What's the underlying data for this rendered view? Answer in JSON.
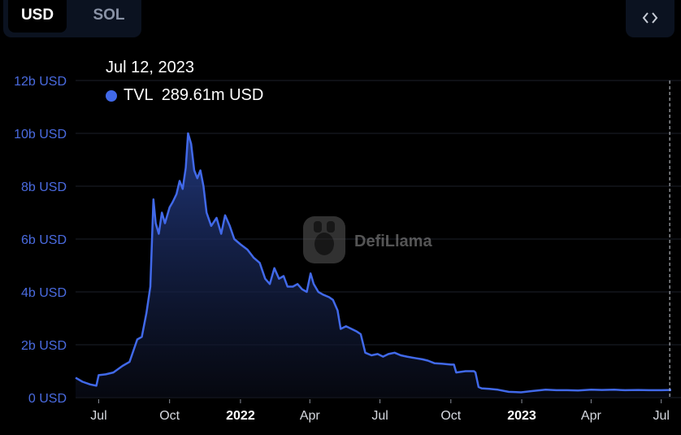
{
  "toggle": {
    "usd_label": "USD",
    "sol_label": "SOL"
  },
  "embed": {
    "icon": "code-brackets-icon"
  },
  "tooltip": {
    "date": "Jul 12, 2023",
    "series": "TVL",
    "value": "289.61m USD"
  },
  "watermark": {
    "brand": "DefiLlama"
  },
  "colors": {
    "line": "#4169e9",
    "axis_label": "#4a6be0",
    "background": "#000000"
  },
  "chart_data": {
    "type": "area",
    "series_name": "TVL",
    "ylim": [
      0,
      12
    ],
    "y_unit": "b USD",
    "y_ticks": [
      "0 USD",
      "2b USD",
      "4b USD",
      "6b USD",
      "8b USD",
      "10b USD",
      "12b USD"
    ],
    "y_tick_values": [
      0,
      2,
      4,
      6,
      8,
      10,
      12
    ],
    "xlim": [
      "2021-06-01",
      "2023-07-14"
    ],
    "x_ticks": [
      {
        "label": "Jul",
        "date": "2021-07-01",
        "bold": false
      },
      {
        "label": "Oct",
        "date": "2021-10-01",
        "bold": false
      },
      {
        "label": "2022",
        "date": "2022-01-01",
        "bold": true
      },
      {
        "label": "Apr",
        "date": "2022-04-01",
        "bold": false
      },
      {
        "label": "Jul",
        "date": "2022-07-01",
        "bold": false
      },
      {
        "label": "Oct",
        "date": "2022-10-01",
        "bold": false
      },
      {
        "label": "2023",
        "date": "2023-01-01",
        "bold": true
      },
      {
        "label": "Apr",
        "date": "2023-04-01",
        "bold": false
      },
      {
        "label": "Jul",
        "date": "2023-07-01",
        "bold": false
      }
    ],
    "grid": true,
    "legend": "none",
    "hover_date": "2023-07-12",
    "points": [
      [
        "2021-06-01",
        0.75
      ],
      [
        "2021-06-10",
        0.6
      ],
      [
        "2021-06-20",
        0.5
      ],
      [
        "2021-06-28",
        0.45
      ],
      [
        "2021-07-01",
        0.85
      ],
      [
        "2021-07-10",
        0.88
      ],
      [
        "2021-07-20",
        0.95
      ],
      [
        "2021-08-01",
        1.2
      ],
      [
        "2021-08-10",
        1.35
      ],
      [
        "2021-08-20",
        2.2
      ],
      [
        "2021-08-26",
        2.3
      ],
      [
        "2021-09-01",
        3.2
      ],
      [
        "2021-09-06",
        4.2
      ],
      [
        "2021-09-10",
        7.5
      ],
      [
        "2021-09-13",
        6.6
      ],
      [
        "2021-09-17",
        6.2
      ],
      [
        "2021-09-21",
        7.0
      ],
      [
        "2021-09-25",
        6.6
      ],
      [
        "2021-10-01",
        7.2
      ],
      [
        "2021-10-05",
        7.4
      ],
      [
        "2021-10-10",
        7.7
      ],
      [
        "2021-10-14",
        8.2
      ],
      [
        "2021-10-18",
        7.9
      ],
      [
        "2021-10-22",
        8.7
      ],
      [
        "2021-10-25",
        10.0
      ],
      [
        "2021-10-29",
        9.6
      ],
      [
        "2021-11-02",
        8.6
      ],
      [
        "2021-11-06",
        8.3
      ],
      [
        "2021-11-10",
        8.6
      ],
      [
        "2021-11-14",
        8.0
      ],
      [
        "2021-11-18",
        7.0
      ],
      [
        "2021-11-24",
        6.5
      ],
      [
        "2021-12-01",
        6.8
      ],
      [
        "2021-12-07",
        6.2
      ],
      [
        "2021-12-12",
        6.9
      ],
      [
        "2021-12-18",
        6.5
      ],
      [
        "2021-12-24",
        6.0
      ],
      [
        "2022-01-01",
        5.8
      ],
      [
        "2022-01-10",
        5.6
      ],
      [
        "2022-01-18",
        5.3
      ],
      [
        "2022-01-26",
        5.1
      ],
      [
        "2022-02-02",
        4.5
      ],
      [
        "2022-02-08",
        4.3
      ],
      [
        "2022-02-14",
        4.9
      ],
      [
        "2022-02-20",
        4.5
      ],
      [
        "2022-02-26",
        4.6
      ],
      [
        "2022-03-03",
        4.2
      ],
      [
        "2022-03-10",
        4.2
      ],
      [
        "2022-03-16",
        4.3
      ],
      [
        "2022-03-22",
        4.1
      ],
      [
        "2022-03-28",
        4.0
      ],
      [
        "2022-04-02",
        4.7
      ],
      [
        "2022-04-06",
        4.3
      ],
      [
        "2022-04-12",
        4.0
      ],
      [
        "2022-04-18",
        3.9
      ],
      [
        "2022-04-26",
        3.8
      ],
      [
        "2022-05-01",
        3.7
      ],
      [
        "2022-05-07",
        3.3
      ],
      [
        "2022-05-11",
        2.6
      ],
      [
        "2022-05-18",
        2.7
      ],
      [
        "2022-05-25",
        2.6
      ],
      [
        "2022-06-01",
        2.5
      ],
      [
        "2022-06-06",
        2.4
      ],
      [
        "2022-06-12",
        1.7
      ],
      [
        "2022-06-20",
        1.6
      ],
      [
        "2022-06-28",
        1.65
      ],
      [
        "2022-07-05",
        1.55
      ],
      [
        "2022-07-12",
        1.65
      ],
      [
        "2022-07-20",
        1.7
      ],
      [
        "2022-07-28",
        1.6
      ],
      [
        "2022-08-05",
        1.55
      ],
      [
        "2022-08-15",
        1.5
      ],
      [
        "2022-08-25",
        1.45
      ],
      [
        "2022-09-01",
        1.4
      ],
      [
        "2022-09-10",
        1.3
      ],
      [
        "2022-09-20",
        1.28
      ],
      [
        "2022-10-01",
        1.25
      ],
      [
        "2022-10-05",
        1.25
      ],
      [
        "2022-10-08",
        0.95
      ],
      [
        "2022-10-20",
        1.0
      ],
      [
        "2022-10-31",
        1.0
      ],
      [
        "2022-11-02",
        0.95
      ],
      [
        "2022-11-06",
        0.4
      ],
      [
        "2022-11-10",
        0.35
      ],
      [
        "2022-11-20",
        0.33
      ],
      [
        "2022-12-01",
        0.3
      ],
      [
        "2022-12-15",
        0.22
      ],
      [
        "2022-12-31",
        0.2
      ],
      [
        "2023-01-15",
        0.25
      ],
      [
        "2023-02-01",
        0.3
      ],
      [
        "2023-02-15",
        0.28
      ],
      [
        "2023-03-01",
        0.28
      ],
      [
        "2023-03-15",
        0.27
      ],
      [
        "2023-04-01",
        0.3
      ],
      [
        "2023-04-15",
        0.29
      ],
      [
        "2023-05-01",
        0.3
      ],
      [
        "2023-05-15",
        0.28
      ],
      [
        "2023-06-01",
        0.29
      ],
      [
        "2023-06-15",
        0.28
      ],
      [
        "2023-07-01",
        0.28
      ],
      [
        "2023-07-12",
        0.29
      ],
      [
        "2023-07-14",
        0.29
      ]
    ]
  }
}
